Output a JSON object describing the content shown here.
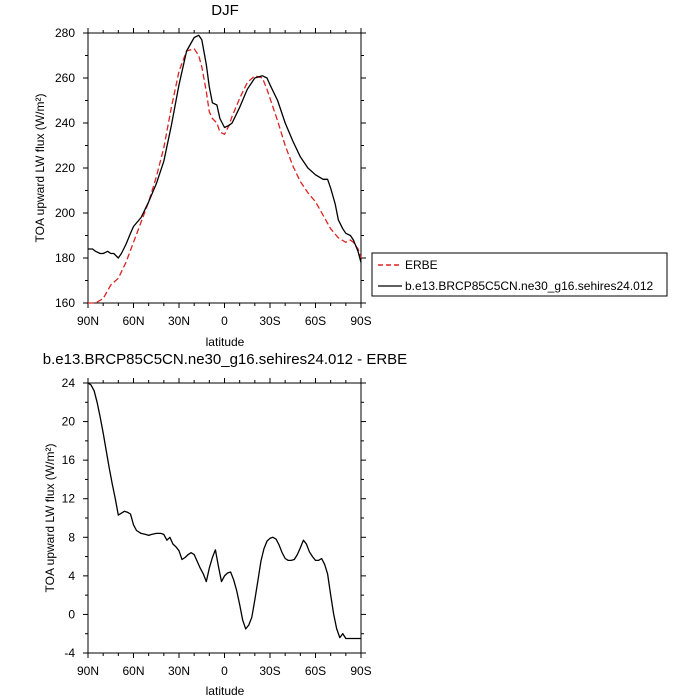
{
  "chart_data": [
    {
      "type": "line",
      "title": "DJF",
      "xlabel": "latitude",
      "ylabel": "TOA upward LW flux (W/m²)",
      "xlim": [
        90,
        -90
      ],
      "ylim": [
        160,
        280
      ],
      "xticks": [
        90,
        60,
        30,
        0,
        -30,
        -60,
        -90
      ],
      "xtick_labels": [
        "90N",
        "60N",
        "30N",
        "0",
        "30S",
        "60S",
        "90S"
      ],
      "yticks": [
        160,
        180,
        200,
        220,
        240,
        260,
        280
      ],
      "ytick_labels": [
        "160",
        "180",
        "200",
        "220",
        "240",
        "260",
        "280"
      ],
      "legend_position": "right",
      "series": [
        {
          "name": "ERBE",
          "color": "#dd2222",
          "dash": "dashed",
          "x": [
            90,
            85,
            80,
            75,
            70,
            65,
            60,
            55,
            50,
            45,
            40,
            35,
            30,
            25,
            20,
            17,
            15,
            12,
            10,
            8,
            5,
            3,
            0,
            -3,
            -5,
            -10,
            -15,
            -20,
            -25,
            -28,
            -30,
            -35,
            -40,
            -45,
            -50,
            -55,
            -60,
            -65,
            -70,
            -75,
            -80,
            -83,
            -85,
            -88,
            -90
          ],
          "y": [
            160,
            160,
            162,
            168,
            171,
            178,
            187,
            196,
            205,
            216,
            229,
            247,
            263,
            272,
            273,
            270,
            265,
            254,
            245,
            242,
            240,
            236,
            235,
            239,
            243,
            251,
            258,
            261,
            260,
            255,
            251,
            241,
            230,
            221,
            214,
            209,
            205,
            199,
            193,
            189,
            187,
            188,
            187,
            184,
            180
          ]
        },
        {
          "name": "b.e13.BRCP85C5CN.ne30_g16.sehires24.012",
          "color": "#000000",
          "dash": "solid",
          "x": [
            90,
            87,
            85,
            82,
            80,
            77,
            75,
            73,
            70,
            68,
            65,
            62,
            60,
            55,
            50,
            45,
            40,
            35,
            30,
            25,
            20,
            17,
            15,
            12,
            10,
            8,
            5,
            3,
            0,
            -3,
            -5,
            -10,
            -15,
            -20,
            -25,
            -28,
            -30,
            -35,
            -40,
            -45,
            -50,
            -55,
            -60,
            -65,
            -68,
            -70,
            -73,
            -75,
            -78,
            -80,
            -83,
            -85,
            -88,
            -90
          ],
          "y": [
            184,
            184,
            183,
            182,
            182,
            183,
            182,
            182,
            180,
            182,
            186,
            191,
            194,
            198,
            205,
            213,
            223,
            239,
            257,
            272,
            278,
            279,
            277,
            266,
            256,
            249,
            248,
            242,
            238,
            239,
            240,
            247,
            255,
            260,
            261,
            260,
            257,
            250,
            240,
            232,
            225,
            220,
            217,
            215,
            215,
            211,
            204,
            197,
            193,
            191,
            190,
            188,
            183,
            178
          ]
        }
      ]
    },
    {
      "type": "line",
      "title": "b.e13.BRCP85C5CN.ne30_g16.sehires24.012 - ERBE",
      "xlabel": "latitude",
      "ylabel": "TOA upward LW flux (W/m²)",
      "xlim": [
        90,
        -90
      ],
      "ylim": [
        -4,
        24
      ],
      "xticks": [
        90,
        60,
        30,
        0,
        -30,
        -60,
        -90
      ],
      "xtick_labels": [
        "90N",
        "60N",
        "30N",
        "0",
        "30S",
        "60S",
        "90S"
      ],
      "yticks": [
        -4,
        0,
        4,
        8,
        12,
        16,
        20,
        24
      ],
      "ytick_labels": [
        "-4",
        "0",
        "4",
        "8",
        "12",
        "16",
        "20",
        "24"
      ],
      "series": [
        {
          "color": "#000000",
          "dash": "solid",
          "x": [
            90,
            88,
            86,
            84,
            82,
            80,
            78,
            76,
            74,
            72,
            70,
            68,
            66,
            64,
            62,
            60,
            58,
            55,
            52,
            50,
            48,
            45,
            42,
            40,
            38,
            36,
            34,
            32,
            30,
            28,
            26,
            24,
            22,
            20,
            18,
            16,
            14,
            12,
            10,
            8,
            6,
            4,
            2,
            0,
            -2,
            -4,
            -6,
            -8,
            -10,
            -12,
            -14,
            -16,
            -18,
            -20,
            -22,
            -24,
            -26,
            -28,
            -30,
            -32,
            -34,
            -36,
            -38,
            -40,
            -42,
            -44,
            -46,
            -48,
            -50,
            -52,
            -54,
            -56,
            -58,
            -60,
            -62,
            -64,
            -66,
            -68,
            -70,
            -72,
            -74,
            -76,
            -78,
            -80,
            -82,
            -84,
            -86,
            -88,
            -90
          ],
          "y": [
            24,
            23.8,
            23.2,
            22,
            20.5,
            18.8,
            17,
            15.2,
            13.5,
            12,
            10.3,
            10.5,
            10.7,
            10.6,
            10.4,
            9.3,
            8.7,
            8.4,
            8.3,
            8.2,
            8.3,
            8.4,
            8.4,
            8.3,
            7.7,
            8.0,
            7.3,
            7.0,
            6.6,
            5.7,
            5.9,
            6.2,
            6.4,
            6.2,
            5.5,
            4.8,
            4.2,
            3.4,
            4.8,
            5.9,
            6.7,
            5.0,
            3.4,
            4.0,
            4.3,
            4.4,
            3.6,
            2.5,
            1.0,
            -0.6,
            -1.5,
            -1.1,
            -0.3,
            1.5,
            3.5,
            5.5,
            6.8,
            7.6,
            7.9,
            8.0,
            7.8,
            7.2,
            6.4,
            5.8,
            5.6,
            5.6,
            5.7,
            6.2,
            6.9,
            7.7,
            7.3,
            6.5,
            6.0,
            5.6,
            5.6,
            5.8,
            5.2,
            4.2,
            2.0,
            0.0,
            -1.5,
            -2.4,
            -2.0,
            -2.5,
            -2.5,
            -2.5,
            -2.5,
            -2.5,
            -2.5
          ]
        }
      ]
    }
  ]
}
